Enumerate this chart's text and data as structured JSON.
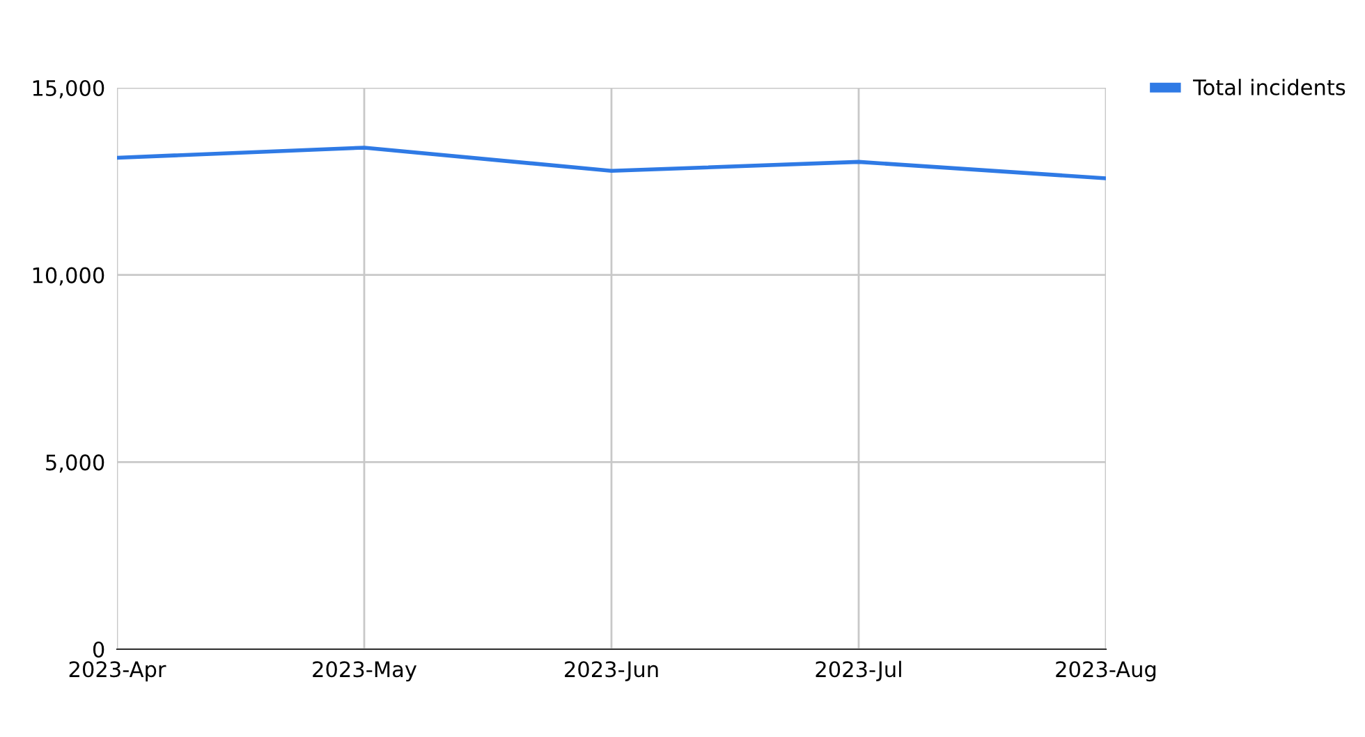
{
  "chart_data": {
    "type": "line",
    "categories": [
      "2023-Apr",
      "2023-May",
      "2023-Jun",
      "2023-Jul",
      "2023-Aug"
    ],
    "series": [
      {
        "name": "Total incidents",
        "color": "#2f7ae5",
        "values": [
          13130,
          13400,
          12780,
          13020,
          12580
        ]
      }
    ],
    "ylim": [
      0,
      15000
    ],
    "yticks": [
      {
        "value": 0,
        "label": "0"
      },
      {
        "value": 5000,
        "label": "5,000"
      },
      {
        "value": 10000,
        "label": "10,000"
      },
      {
        "value": 15000,
        "label": "15,000"
      }
    ],
    "grid": true,
    "legend": "top right",
    "marker": "none",
    "line_style": "solid"
  }
}
